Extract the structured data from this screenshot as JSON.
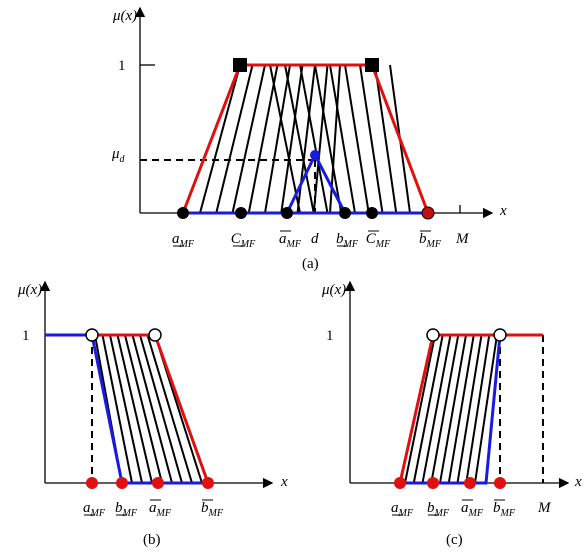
{
  "panel_a": {
    "y_label": "μ(x)",
    "one": "1",
    "mu_d": {
      "main": "μ",
      "sub": "d"
    },
    "x_label": "x",
    "labels": [
      {
        "main": "a",
        "sub": "MF"
      },
      {
        "main": "C",
        "sub": "MF"
      },
      {
        "main": "a",
        "sub": "MF"
      },
      {
        "main": "b",
        "sub": "MF"
      },
      {
        "main": "C",
        "sub": "MF"
      },
      {
        "main": "b",
        "sub": "MF"
      }
    ],
    "d": "d",
    "M": "M",
    "caption": "(a)"
  },
  "panel_b": {
    "y_label": "μ(x)",
    "one": "1",
    "x_label": "x",
    "labels": [
      {
        "main": "a",
        "sub": "MF"
      },
      {
        "main": "b",
        "sub": "MF"
      },
      {
        "main": "a",
        "sub": "MF"
      },
      {
        "main": "b",
        "sub": "MF"
      }
    ],
    "caption": "(b)"
  },
  "panel_c": {
    "y_label": "μ(x)",
    "one": "1",
    "x_label": "x",
    "labels": [
      {
        "main": "a",
        "sub": "MF"
      },
      {
        "main": "b",
        "sub": "MF"
      },
      {
        "main": "a",
        "sub": "MF"
      },
      {
        "main": "b",
        "sub": "MF"
      }
    ],
    "M": "M",
    "caption": "(c)"
  }
}
